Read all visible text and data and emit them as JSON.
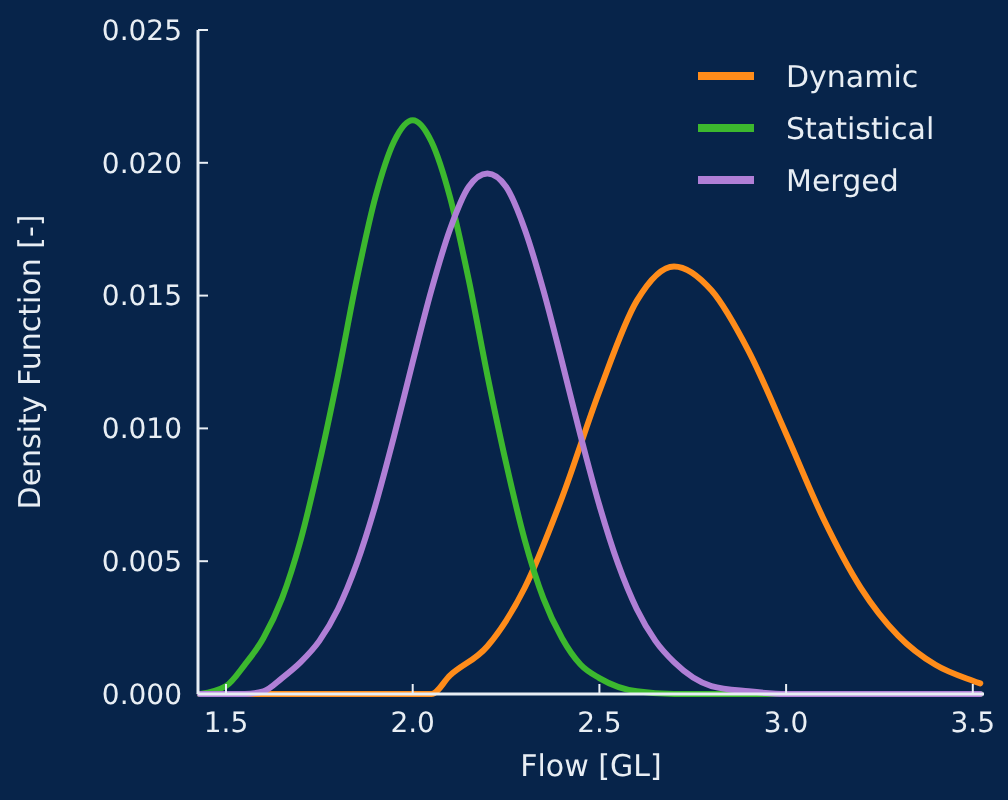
{
  "chart_data": {
    "type": "line",
    "xlabel": "Flow [GL]",
    "ylabel": "Density Function [-]",
    "xlim": [
      1.425,
      3.53
    ],
    "xticks": [
      {
        "value": 1.5,
        "label": "1.5"
      },
      {
        "value": 2,
        "label": "2.0"
      },
      {
        "value": 2.5,
        "label": "2.5"
      },
      {
        "value": 3,
        "label": "3.0"
      },
      {
        "value": 3.5,
        "label": "3.5"
      }
    ],
    "ylim": [
      0,
      0.025
    ],
    "yticks": [
      {
        "value": 0,
        "label": "0.000"
      },
      {
        "value": 0.005,
        "label": "0.005"
      },
      {
        "value": 0.01,
        "label": "0.010"
      },
      {
        "value": 0.015,
        "label": "0.015"
      },
      {
        "value": 0.02,
        "label": "0.020"
      },
      {
        "value": 0.025,
        "label": "0.025"
      }
    ],
    "grid": false,
    "legend": "top right",
    "marker": "none",
    "line_style": "solid",
    "series": [
      {
        "name": "Dynamic",
        "color": "#ff8c1a",
        "x": [
          1.43,
          2.05,
          2.1,
          2.2,
          2.3,
          2.4,
          2.5,
          2.6,
          2.7,
          2.8,
          2.9,
          3.0,
          3.1,
          3.2,
          3.3,
          3.4,
          3.5,
          3.52
        ],
        "values": [
          0,
          0,
          0.0007,
          0.0018,
          0.004,
          0.0074,
          0.0114,
          0.0148,
          0.0161,
          0.0152,
          0.0129,
          0.0098,
          0.0066,
          0.004,
          0.0022,
          0.0011,
          0.0005,
          0.0004
        ]
      },
      {
        "name": "Statistical",
        "color": "#3cb82e",
        "x": [
          1.43,
          1.5,
          1.55,
          1.6,
          1.65,
          1.7,
          1.75,
          1.8,
          1.85,
          1.9,
          1.95,
          2.0,
          2.05,
          2.1,
          2.15,
          2.2,
          2.25,
          2.3,
          2.35,
          2.4,
          2.45,
          2.5,
          2.6,
          2.7,
          3.52
        ],
        "values": [
          0,
          0.0003,
          0.0011,
          0.0021,
          0.0036,
          0.0058,
          0.0087,
          0.012,
          0.0156,
          0.0187,
          0.0208,
          0.0216,
          0.0208,
          0.0187,
          0.0156,
          0.012,
          0.0087,
          0.0058,
          0.0036,
          0.0021,
          0.0011,
          0.0006,
          0.0001,
          0,
          0
        ]
      },
      {
        "name": "Merged",
        "color": "#b07fd6",
        "x": [
          1.43,
          1.55,
          1.6,
          1.65,
          1.7,
          1.75,
          1.8,
          1.85,
          1.9,
          1.95,
          2.0,
          2.05,
          2.1,
          2.15,
          2.2,
          2.25,
          2.3,
          2.35,
          2.4,
          2.45,
          2.5,
          2.55,
          2.6,
          2.65,
          2.7,
          2.8,
          2.9,
          3.0,
          3.52
        ],
        "values": [
          0,
          0,
          0.0001,
          0.0006,
          0.0012,
          0.002,
          0.0032,
          0.0049,
          0.0071,
          0.0097,
          0.0125,
          0.0152,
          0.0175,
          0.0191,
          0.0196,
          0.0191,
          0.0175,
          0.0152,
          0.0125,
          0.0097,
          0.0071,
          0.0049,
          0.0032,
          0.002,
          0.0012,
          0.0003,
          0.0001,
          0,
          0
        ]
      }
    ]
  }
}
